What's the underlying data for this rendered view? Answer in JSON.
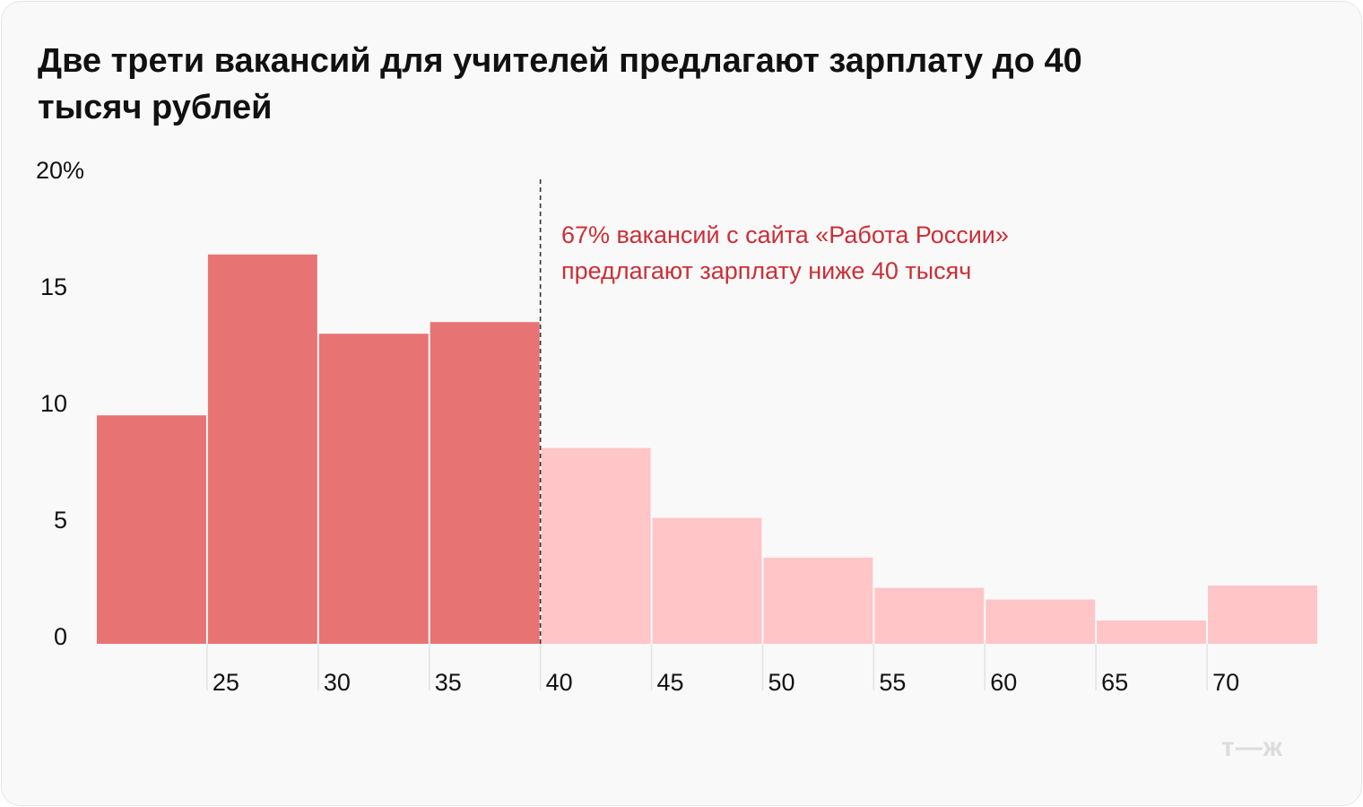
{
  "title": "Две трети вакансий для учителей предлагают зарплату до 40 тысяч рублей",
  "annotation": {
    "line1": "67% вакансий с сайта «Работа России»",
    "line2": "предлагают зарплату ниже 40 тысяч"
  },
  "logo": "т—ж",
  "chart_data": {
    "type": "bar",
    "subtype": "histogram",
    "bin_edges": [
      20,
      25,
      30,
      35,
      40,
      45,
      50,
      55,
      60,
      65,
      70,
      75
    ],
    "x_tick_labels": [
      "25",
      "30",
      "35",
      "40",
      "45",
      "50",
      "55",
      "60",
      "65",
      "70"
    ],
    "values": [
      9.8,
      16.7,
      13.3,
      13.8,
      8.4,
      5.4,
      3.7,
      2.4,
      1.9,
      1.0,
      2.5
    ],
    "y_tick_labels": [
      "0",
      "5",
      "10",
      "15",
      "20%"
    ],
    "ylim": [
      0,
      20
    ],
    "threshold": 40,
    "colors": {
      "below": "#e87373",
      "above": "#ffc5c7",
      "annotation": "#cc2f36"
    },
    "grid": false
  }
}
